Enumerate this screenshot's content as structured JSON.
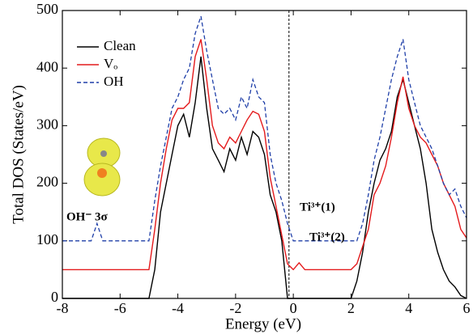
{
  "chart_data": {
    "type": "line",
    "xlabel": "Energy (eV)",
    "ylabel": "Total DOS (States/eV)",
    "x": [
      -8,
      -7.8,
      -7.6,
      -7.4,
      -7.2,
      -7,
      -6.8,
      -6.6,
      -6.4,
      -6.2,
      -6,
      -5.8,
      -5.6,
      -5.4,
      -5.2,
      -5,
      -4.8,
      -4.6,
      -4.4,
      -4.2,
      -4,
      -3.8,
      -3.6,
      -3.4,
      -3.2,
      -3,
      -2.8,
      -2.6,
      -2.4,
      -2.2,
      -2,
      -1.8,
      -1.6,
      -1.4,
      -1.2,
      -1,
      -0.8,
      -0.6,
      -0.4,
      -0.2,
      0,
      0.2,
      0.4,
      0.6,
      0.8,
      1,
      1.2,
      1.4,
      1.6,
      1.8,
      2,
      2.2,
      2.4,
      2.6,
      2.8,
      3,
      3.2,
      3.4,
      3.6,
      3.8,
      4,
      4.2,
      4.4,
      4.6,
      4.8,
      5,
      5.2,
      5.4,
      5.6,
      5.8,
      6
    ],
    "series": [
      {
        "name": "Clean",
        "color": "#000000",
        "dash": "solid",
        "values": [
          0,
          0,
          0,
          0,
          0,
          0,
          0,
          0,
          0,
          0,
          0,
          0,
          0,
          0,
          0,
          0,
          50,
          150,
          200,
          250,
          300,
          320,
          280,
          340,
          420,
          330,
          260,
          240,
          220,
          260,
          240,
          280,
          250,
          290,
          280,
          250,
          180,
          150,
          100,
          0,
          0,
          0,
          0,
          0,
          0,
          0,
          0,
          0,
          0,
          0,
          0,
          30,
          80,
          150,
          200,
          240,
          260,
          290,
          350,
          380,
          340,
          300,
          260,
          200,
          120,
          80,
          50,
          30,
          20,
          5,
          0
        ]
      },
      {
        "name": "Vₒ",
        "color": "#e41a1c",
        "dash": "solid",
        "values": [
          50,
          50,
          50,
          50,
          50,
          50,
          50,
          50,
          50,
          50,
          50,
          50,
          50,
          50,
          50,
          50,
          120,
          200,
          260,
          310,
          330,
          330,
          340,
          420,
          450,
          380,
          300,
          270,
          260,
          280,
          270,
          290,
          310,
          325,
          320,
          290,
          210,
          160,
          110,
          60,
          50,
          62,
          50,
          50,
          50,
          50,
          50,
          50,
          50,
          50,
          50,
          60,
          90,
          120,
          180,
          200,
          230,
          280,
          340,
          385,
          330,
          300,
          280,
          270,
          250,
          230,
          200,
          180,
          160,
          120,
          105
        ]
      },
      {
        "name": "OH",
        "color": "#1f3fa8",
        "dash": "dashed",
        "values": [
          100,
          100,
          100,
          100,
          100,
          100,
          130,
          100,
          100,
          100,
          100,
          100,
          100,
          100,
          100,
          100,
          170,
          230,
          280,
          330,
          350,
          380,
          400,
          460,
          490,
          430,
          380,
          330,
          320,
          330,
          310,
          350,
          330,
          380,
          350,
          340,
          250,
          200,
          170,
          130,
          100,
          100,
          100,
          100,
          100,
          100,
          100,
          100,
          100,
          100,
          100,
          100,
          130,
          180,
          240,
          280,
          330,
          380,
          420,
          450,
          380,
          340,
          300,
          280,
          260,
          230,
          200,
          180,
          190,
          160,
          140
        ]
      }
    ],
    "xlim": [
      -8,
      6
    ],
    "xticks": [
      -8,
      -6,
      -4,
      -2,
      0,
      2,
      4,
      6
    ],
    "ylim": [
      0,
      500
    ],
    "yticks": [
      0,
      100,
      200,
      300,
      400,
      500
    ],
    "fermi_level": -0.15,
    "legend": "upper left",
    "annotations": [
      {
        "text": "OH⁻ 3σ",
        "color": "#1f3fa8"
      },
      {
        "text": "Ti³⁺(1)",
        "color": "#1f3fa8"
      },
      {
        "text": "Ti³⁺(2)",
        "color": "#e41a1c"
      }
    ]
  }
}
